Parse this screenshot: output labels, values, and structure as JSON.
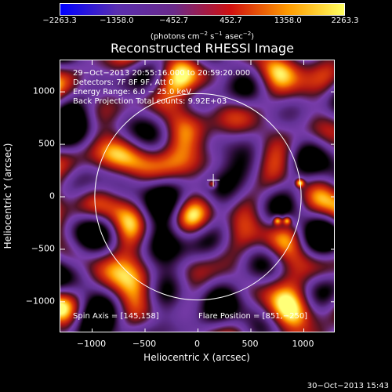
{
  "colorbar": {
    "ticks": [
      "−2263.3",
      "−1358.0",
      "−452.7",
      "452.7",
      "1358.0",
      "2263.3"
    ],
    "units_main": "(photons cm",
    "units_sup1": "−2",
    "units_mid1": " s",
    "units_sup2": "−1",
    "units_mid2": " asec",
    "units_sup3": "−2",
    "units_end": ")",
    "colors": [
      "#0000ff",
      "#5a2fb0",
      "#6a2a8a",
      "#d01010",
      "#ff9a00",
      "#ffff60"
    ]
  },
  "plot": {
    "title": "Reconstructed RHESSI Image",
    "info_lines": [
      "29−Oct−2013 20:55:16.000 to 20:59:20.000",
      "Detectors: 7F 8F 9F, Att 0",
      "Energy Range: 6.0 − 25.0 keV",
      "Back Projection    Total counts: 9.92E+03"
    ],
    "spin_axis": "Spin Axis = [145,158]",
    "flare_position": "Flare Position = [851,−250]",
    "timestamp": "30−Oct−2013 15:43"
  },
  "chart_data": {
    "type": "heatmap",
    "title": "Reconstructed RHESSI Image",
    "xlabel": "Heliocentric X (arcsec)",
    "ylabel": "Heliocentric Y (arcsec)",
    "xlim": [
      -1300,
      1300
    ],
    "ylim": [
      -1300,
      1300
    ],
    "xticks": [
      "−1000",
      "−500",
      "0",
      "500",
      "1000"
    ],
    "yticks": [
      "1000",
      "500",
      "0",
      "−500",
      "−1000"
    ],
    "tick_values": [
      -1000,
      -500,
      0,
      500,
      1000
    ],
    "colorbar_range": [
      -2263.3,
      2263.3
    ],
    "solar_limb_radius": 975,
    "cross_marker": [
      145,
      158
    ],
    "bright_sources": [
      {
        "x": 973,
        "y": 130,
        "level": 1.0
      },
      {
        "x": 760,
        "y": -230,
        "level": 1.0
      },
      {
        "x": 850,
        "y": -230,
        "level": 0.95
      },
      {
        "x": 140,
        "y": 120,
        "level": 0.8
      }
    ]
  }
}
